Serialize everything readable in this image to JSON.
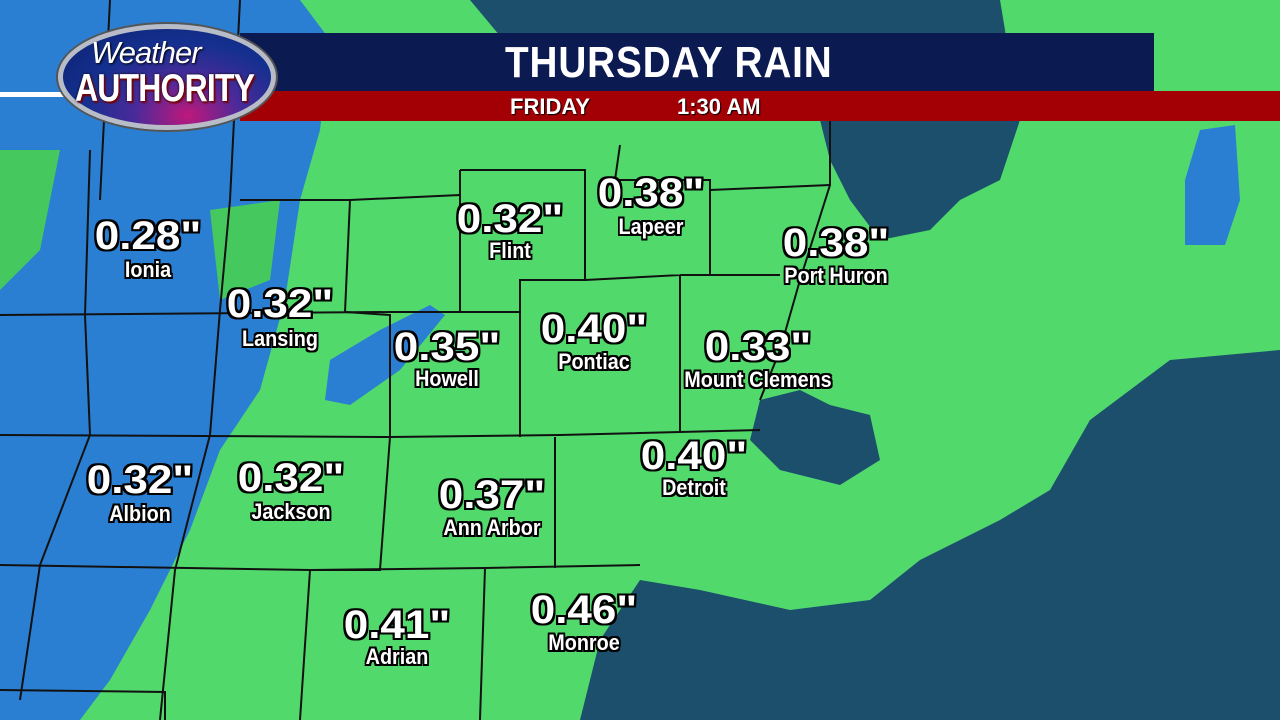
{
  "logo": {
    "line1": "Weather",
    "line2": "AUTHORITY"
  },
  "header": {
    "title": "THURSDAY RAIN",
    "day": "FRIDAY",
    "time": "1:30 AM"
  },
  "colors": {
    "land_rain_light": "#52d96c",
    "rain_moderate": "#2a7fd2",
    "water": "#1b4f6c",
    "header_navy": "#0c1a52",
    "header_red": "#a30006"
  },
  "locations": [
    {
      "name": "Ionia",
      "value": "0.28\""
    },
    {
      "name": "Lansing",
      "value": "0.32\""
    },
    {
      "name": "Flint",
      "value": "0.32\""
    },
    {
      "name": "Lapeer",
      "value": "0.38\""
    },
    {
      "name": "Port Huron",
      "value": "0.38\""
    },
    {
      "name": "Howell",
      "value": "0.35\""
    },
    {
      "name": "Pontiac",
      "value": "0.40\""
    },
    {
      "name": "Mount Clemens",
      "value": "0.33\""
    },
    {
      "name": "Albion",
      "value": "0.32\""
    },
    {
      "name": "Jackson",
      "value": "0.32\""
    },
    {
      "name": "Ann Arbor",
      "value": "0.37\""
    },
    {
      "name": "Detroit",
      "value": "0.40\""
    },
    {
      "name": "Adrian",
      "value": "0.41\""
    },
    {
      "name": "Monroe",
      "value": "0.46\""
    }
  ]
}
